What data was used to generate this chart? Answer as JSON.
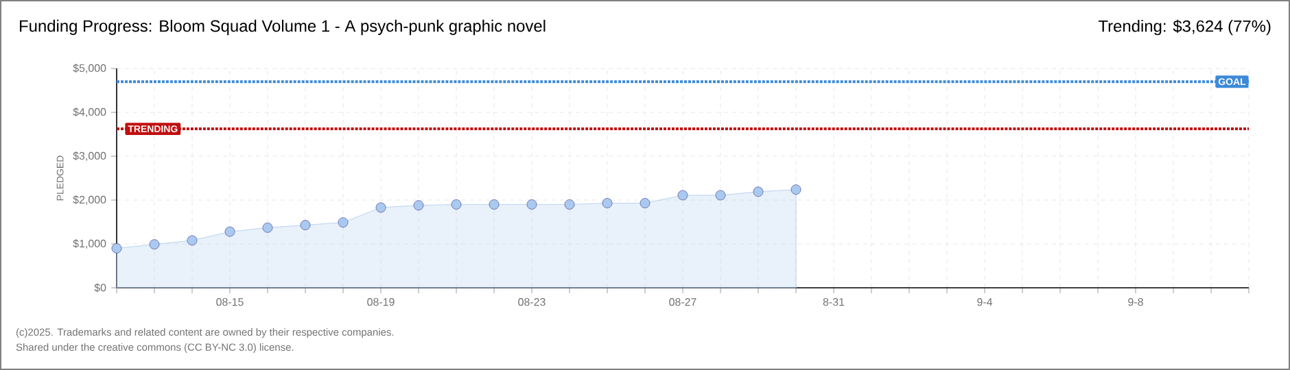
{
  "chart_data": {
    "type": "area",
    "title": "Funding Progress: Bloom Squad Volume 1 - A psych-punk graphic novel",
    "subtitle": "Trending: $3,624 (77%)",
    "ylabel": "PLEDGED",
    "annotations": [
      "(c)2025. Trademarks and related content are owned by their respective companies.",
      "Shared under the creative commons (CC BY-NC 3.0) license."
    ],
    "x": [
      "2025-08-12",
      "2025-08-13",
      "2025-08-14",
      "2025-08-15",
      "2025-08-16",
      "2025-08-17",
      "2025-08-18",
      "2025-08-19",
      "2025-08-20",
      "2025-08-21",
      "2025-08-22",
      "2025-08-23",
      "2025-08-24",
      "2025-08-25",
      "2025-08-26",
      "2025-08-27",
      "2025-08-28",
      "2025-08-29",
      "2025-08-30"
    ],
    "series": [
      {
        "color": "#a9c9ee",
        "values": [
          900,
          990,
          1080,
          1280,
          1370,
          1430,
          1490,
          1830,
          1880,
          1900,
          1900,
          1900,
          1900,
          1930,
          1930,
          2110,
          2110,
          2190,
          2240
        ]
      }
    ],
    "xlim": [
      "2025-08-12",
      "2025-09-11"
    ],
    "xticks": [
      {
        "value": "2025-08-12",
        "label": null
      },
      {
        "value": "2025-08-13",
        "label": null
      },
      {
        "value": "2025-08-14",
        "label": null
      },
      {
        "value": "2025-08-15",
        "label": "08-15"
      },
      {
        "value": "2025-08-16",
        "label": null
      },
      {
        "value": "2025-08-17",
        "label": null
      },
      {
        "value": "2025-08-18",
        "label": null
      },
      {
        "value": "2025-08-19",
        "label": "08-19"
      },
      {
        "value": "2025-08-20",
        "label": null
      },
      {
        "value": "2025-08-21",
        "label": null
      },
      {
        "value": "2025-08-22",
        "label": null
      },
      {
        "value": "2025-08-23",
        "label": "08-23"
      },
      {
        "value": "2025-08-24",
        "label": null
      },
      {
        "value": "2025-08-25",
        "label": null
      },
      {
        "value": "2025-08-26",
        "label": null
      },
      {
        "value": "2025-08-27",
        "label": "08-27"
      },
      {
        "value": "2025-08-28",
        "label": null
      },
      {
        "value": "2025-08-29",
        "label": null
      },
      {
        "value": "2025-08-30",
        "label": null
      },
      {
        "value": "2025-08-31",
        "label": "8-31"
      },
      {
        "value": "2025-09-01",
        "label": null
      },
      {
        "value": "2025-09-02",
        "label": null
      },
      {
        "value": "2025-09-03",
        "label": null
      },
      {
        "value": "2025-09-04",
        "label": "9-4"
      },
      {
        "value": "2025-09-05",
        "label": null
      },
      {
        "value": "2025-09-06",
        "label": null
      },
      {
        "value": "2025-09-07",
        "label": null
      },
      {
        "value": "2025-09-08",
        "label": "9-8"
      },
      {
        "value": "2025-09-09",
        "label": null
      },
      {
        "value": "2025-09-10",
        "label": null
      },
      {
        "value": "2025-09-11",
        "label": null
      }
    ],
    "ylim": [
      0,
      5000
    ],
    "yticks": [
      {
        "value": 0,
        "label": "$0"
      },
      {
        "value": 1000,
        "label": "$1,000"
      },
      {
        "value": 2000,
        "label": "$2,000"
      },
      {
        "value": 3000,
        "label": "$3,000"
      },
      {
        "value": 4000,
        "label": "$4,000"
      },
      {
        "value": 5000,
        "label": "$5,000"
      }
    ],
    "ref_lines": [
      {
        "axis": "y",
        "value": 4700,
        "label": "GOAL",
        "color": "#3d8ad8",
        "line_style": "dotted"
      },
      {
        "axis": "y",
        "value": 3624,
        "label": "TRENDING",
        "color": "#c01010",
        "line_style": "dotted"
      }
    ],
    "grid": true,
    "marker": "circle",
    "line_style": "solid"
  }
}
